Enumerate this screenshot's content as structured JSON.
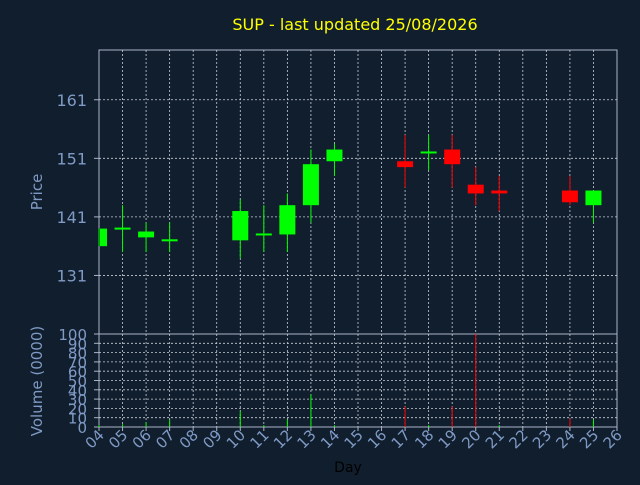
{
  "chart_data": {
    "type": "candlestick",
    "title": "SUP - last updated 25/08/2026",
    "ylabel": "Price",
    "xlabel": "Day",
    "volume_ylabel": "Volume (0000)",
    "grid": true,
    "price_yticks": [
      131,
      141,
      151,
      161
    ],
    "volume_yticks": [
      0,
      10,
      20,
      30,
      40,
      50,
      60,
      70,
      80,
      90,
      100
    ],
    "x_ticks": [
      "04",
      "05",
      "06",
      "07",
      "08",
      "09",
      "10",
      "11",
      "12",
      "13",
      "14",
      "15",
      "16",
      "17",
      "18",
      "19",
      "20",
      "21",
      "22",
      "23",
      "24",
      "25",
      "26"
    ],
    "candles": [
      {
        "day": "04",
        "open": 136.0,
        "close": 139.0,
        "low": 136.0,
        "high": 139.0
      },
      {
        "day": "05",
        "open": 139.0,
        "close": 139.0,
        "low": 135.0,
        "high": 143.0
      },
      {
        "day": "06",
        "open": 137.5,
        "close": 138.5,
        "low": 135.0,
        "high": 140.0
      },
      {
        "day": "07",
        "open": 137.0,
        "close": 137.0,
        "low": 135.0,
        "high": 140.0
      },
      {
        "day": "10",
        "open": 137.0,
        "close": 142.0,
        "low": 134.0,
        "high": 144.0
      },
      {
        "day": "11",
        "open": 138.0,
        "close": 138.0,
        "low": 135.0,
        "high": 143.0
      },
      {
        "day": "12",
        "open": 138.0,
        "close": 143.0,
        "low": 135.0,
        "high": 145.0
      },
      {
        "day": "13",
        "open": 143.0,
        "close": 150.0,
        "low": 140.0,
        "high": 152.5
      },
      {
        "day": "14",
        "open": 150.5,
        "close": 152.5,
        "low": 148.0,
        "high": 153.5
      },
      {
        "day": "17",
        "open": 150.5,
        "close": 149.5,
        "low": 146.0,
        "high": 155.0
      },
      {
        "day": "18",
        "open": 152.0,
        "close": 152.0,
        "low": 149.0,
        "high": 155.0
      },
      {
        "day": "19",
        "open": 152.5,
        "close": 150.0,
        "low": 146.0,
        "high": 155.0
      },
      {
        "day": "20",
        "open": 146.5,
        "close": 145.0,
        "low": 143.0,
        "high": 149.5
      },
      {
        "day": "21",
        "open": 145.5,
        "close": 145.0,
        "low": 142.0,
        "high": 148.0
      },
      {
        "day": "24",
        "open": 145.5,
        "close": 143.5,
        "low": 143.0,
        "high": 148.0
      },
      {
        "day": "25",
        "open": 143.0,
        "close": 145.5,
        "low": 140.0,
        "high": 145.5
      }
    ],
    "volume": [
      {
        "day": "04",
        "value": 2,
        "color": "#00ff00"
      },
      {
        "day": "05",
        "value": 3,
        "color": "#00ff00"
      },
      {
        "day": "06",
        "value": 5,
        "color": "#00ff00"
      },
      {
        "day": "07",
        "value": 8,
        "color": "#00ff00"
      },
      {
        "day": "10",
        "value": 17,
        "color": "#00ff00"
      },
      {
        "day": "11",
        "value": 2,
        "color": "#00ff00"
      },
      {
        "day": "12",
        "value": 8,
        "color": "#00ff00"
      },
      {
        "day": "13",
        "value": 35,
        "color": "#00ff00"
      },
      {
        "day": "14",
        "value": 2,
        "color": "#00ff00"
      },
      {
        "day": "17",
        "value": 22,
        "color": "#ff0000"
      },
      {
        "day": "18",
        "value": 2,
        "color": "#00ff00"
      },
      {
        "day": "19",
        "value": 22,
        "color": "#ff0000"
      },
      {
        "day": "20",
        "value": 100,
        "color": "#ff0000"
      },
      {
        "day": "21",
        "value": 2,
        "color": "#00ff00"
      },
      {
        "day": "24",
        "value": 9,
        "color": "#ff0000"
      },
      {
        "day": "25",
        "value": 8,
        "color": "#00ff00"
      }
    ],
    "colors": {
      "background": "#111e2e",
      "up": "#00ff00",
      "down": "#ff0000",
      "axis": "#aab4c8",
      "grid": "#c8cdd6",
      "title": "#ffff00",
      "label": "#7f9ac4"
    }
  }
}
